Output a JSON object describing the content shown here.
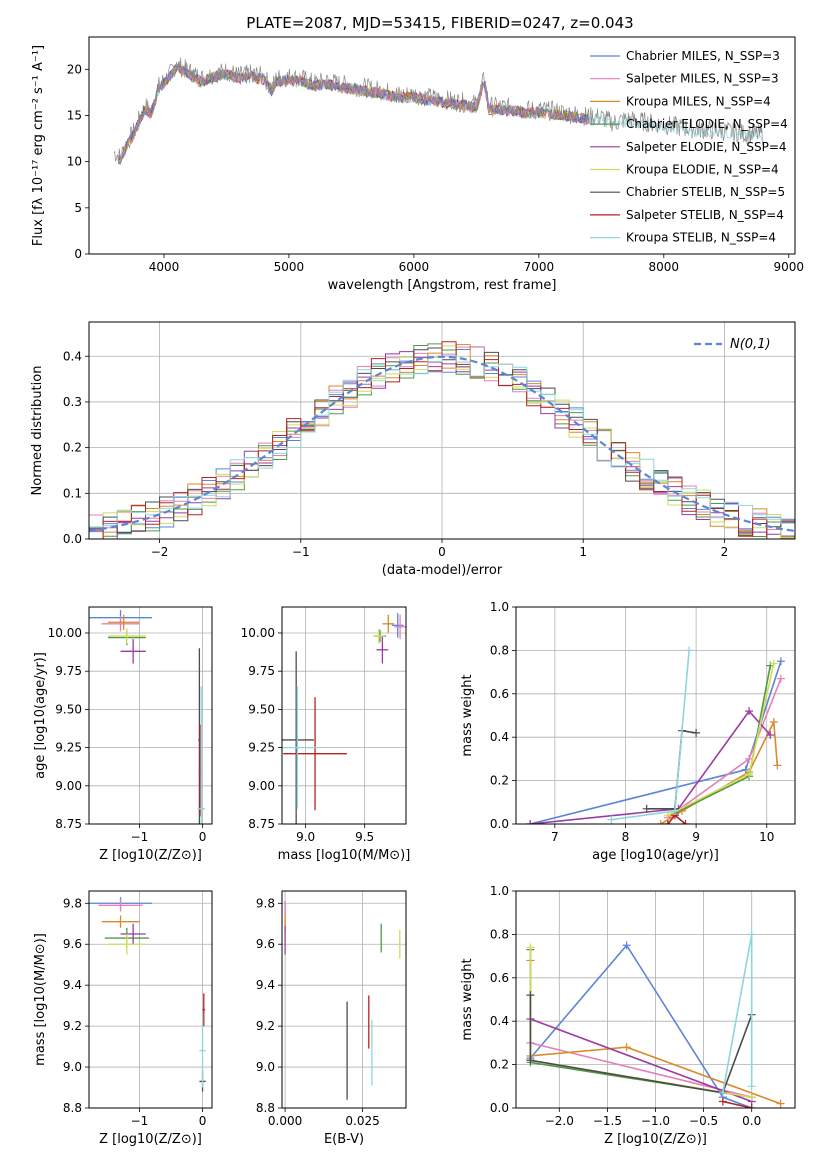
{
  "figure_title": "PLATE=2087, MJD=53415, FIBERID=0247, z=0.043",
  "colors": {
    "Chabrier MILES": "#5b86d8",
    "Salpeter MILES": "#e57fb8",
    "Kroupa MILES": "#d98a2a",
    "Chabrier ELODIE": "#4e9a47",
    "Salpeter ELODIE": "#9b3aa3",
    "Kroupa ELODIE": "#d2dc5a",
    "Chabrier STELIB": "#4d4d4d",
    "Salpeter STELIB": "#b52323",
    "Kroupa STELIB": "#8fd6dc",
    "normal": "#5b86d8",
    "grid": "#b0b0b0"
  },
  "chart_data": [
    {
      "id": "spectrum",
      "type": "line",
      "title": "PLATE=2087, MJD=53415, FIBERID=0247, z=0.043",
      "xlabel": "wavelength [Angstrom, rest frame]",
      "ylabel": "Flux [fλ 10⁻¹⁷ erg cm⁻² s⁻¹ A⁻¹]",
      "xlim": [
        3400,
        9050
      ],
      "ylim": [
        0,
        23.5
      ],
      "grid": false,
      "xticks": [
        4000,
        5000,
        6000,
        7000,
        8000,
        9000
      ],
      "yticks": [
        0,
        5,
        10,
        15,
        20
      ],
      "legend_position": "top-right",
      "observed": {
        "x": [
          3600,
          3650,
          3700,
          3750,
          3800,
          3850,
          3900,
          3950,
          4000,
          4050,
          4100,
          4200,
          4300,
          4400,
          4500,
          4600,
          4700,
          4800,
          4861,
          4900,
          5000,
          5100,
          5200,
          5300,
          5400,
          5500,
          5600,
          5700,
          5800,
          5900,
          6000,
          6100,
          6200,
          6300,
          6400,
          6500,
          6563,
          6600,
          6700,
          6800,
          6900,
          7000,
          7100,
          7200,
          7300,
          7400,
          7500,
          7600,
          7700,
          7800,
          7900,
          8000,
          8100,
          8200,
          8300,
          8400,
          8500,
          8600,
          8700,
          8800
        ],
        "y": [
          11.0,
          10.5,
          12.0,
          13.0,
          14.5,
          16.0,
          15.5,
          18.0,
          18.8,
          19.5,
          20.5,
          19.8,
          19.0,
          19.5,
          19.8,
          19.3,
          19.5,
          19.2,
          18.0,
          19.0,
          19.2,
          19.0,
          18.5,
          18.7,
          18.4,
          18.2,
          18.0,
          17.8,
          17.5,
          17.2,
          17.3,
          17.0,
          16.8,
          16.6,
          16.4,
          16.2,
          19.0,
          16.0,
          15.9,
          15.8,
          15.6,
          15.6,
          15.5,
          15.3,
          15.1,
          14.9,
          14.8,
          14.2,
          14.6,
          14.4,
          14.2,
          14.0,
          13.8,
          13.6,
          13.5,
          13.4,
          13.3,
          13.1,
          13.0,
          12.9
        ]
      },
      "series": [
        {
          "name": "Chabrier MILES, N_SSP=3"
        },
        {
          "name": "Salpeter MILES, N_SSP=3"
        },
        {
          "name": "Kroupa MILES, N_SSP=4"
        },
        {
          "name": "Chabrier ELODIE, N_SSP=4"
        },
        {
          "name": "Salpeter ELODIE, N_SSP=4"
        },
        {
          "name": "Kroupa ELODIE, N_SSP=4"
        },
        {
          "name": "Chabrier STELIB, N_SSP=5"
        },
        {
          "name": "Salpeter STELIB, N_SSP=4"
        },
        {
          "name": "Kroupa STELIB, N_SSP=4"
        }
      ]
    },
    {
      "id": "residuals",
      "type": "histogram",
      "xlabel": "(data-model)/error",
      "ylabel": "Normed distribution",
      "xlim": [
        -2.5,
        2.5
      ],
      "ylim": [
        0,
        0.475
      ],
      "grid": true,
      "xticks": [
        -2,
        -1,
        0,
        1,
        2
      ],
      "yticks": [
        0.0,
        0.1,
        0.2,
        0.3,
        0.4
      ],
      "legend": [
        {
          "label": "N(0,1)",
          "style": "dashed"
        }
      ],
      "legend_position": "top-right"
    },
    {
      "id": "age_vs_Z",
      "type": "errorbar",
      "xlabel": "Z [log10(Z/Z⊙)]",
      "ylabel": "age  [log10(age/yr)]",
      "xlim": [
        -1.8,
        0.15
      ],
      "ylim": [
        8.75,
        10.17
      ],
      "grid": true,
      "xticks": [
        -1,
        0
      ],
      "yticks": [
        8.75,
        9.0,
        9.25,
        9.5,
        9.75,
        10.0
      ],
      "points": [
        {
          "model": "Chabrier MILES",
          "x": -1.3,
          "y": 10.1,
          "xerr": 0.5,
          "yerr": 0.05
        },
        {
          "model": "Salpeter MILES",
          "x": -1.3,
          "y": 10.06,
          "xerr": 0.3,
          "yerr": 0.05
        },
        {
          "model": "Kroupa MILES",
          "x": -1.25,
          "y": 10.07,
          "xerr": 0.25,
          "yerr": 0.05
        },
        {
          "model": "Chabrier ELODIE",
          "x": -1.2,
          "y": 9.97,
          "xerr": 0.3,
          "yerr": 0.05
        },
        {
          "model": "Salpeter ELODIE",
          "x": -1.1,
          "y": 9.88,
          "xerr": 0.2,
          "yerr": 0.08
        },
        {
          "model": "Kroupa ELODIE",
          "x": -1.2,
          "y": 9.98,
          "xerr": 0.3,
          "yerr": 0.05
        },
        {
          "model": "Chabrier STELIB",
          "x": -0.05,
          "y": 9.3,
          "xerr": 0.02,
          "yerr": 0.6
        },
        {
          "model": "Salpeter STELIB",
          "x": -0.04,
          "y": 9.1,
          "xerr": 0.02,
          "yerr": 0.3
        },
        {
          "model": "Kroupa STELIB",
          "x": -0.02,
          "y": 8.85,
          "xerr": 0.06,
          "yerr": 0.8
        }
      ]
    },
    {
      "id": "age_vs_mass",
      "type": "errorbar",
      "xlabel": "mass [log10(M/M⊙)]",
      "ylabel": "",
      "xlim": [
        8.8,
        9.85
      ],
      "ylim": [
        8.75,
        10.17
      ],
      "grid": true,
      "xticks": [
        9.0,
        9.5
      ],
      "yticks": [
        8.75,
        9.0,
        9.25,
        9.5,
        9.75,
        10.0
      ],
      "points": [
        {
          "model": "Chabrier MILES",
          "x": 9.78,
          "y": 10.05,
          "xerr": 0.05,
          "yerr": 0.08
        },
        {
          "model": "Salpeter MILES",
          "x": 9.8,
          "y": 10.04,
          "xerr": 0.05,
          "yerr": 0.08
        },
        {
          "model": "Kroupa MILES",
          "x": 9.7,
          "y": 10.06,
          "xerr": 0.05,
          "yerr": 0.06
        },
        {
          "model": "Chabrier ELODIE",
          "x": 9.63,
          "y": 9.98,
          "xerr": 0.05,
          "yerr": 0.04
        },
        {
          "model": "Salpeter ELODIE",
          "x": 9.65,
          "y": 9.89,
          "xerr": 0.05,
          "yerr": 0.09
        },
        {
          "model": "Kroupa ELODIE",
          "x": 9.62,
          "y": 9.98,
          "xerr": 0.05,
          "yerr": 0.05
        },
        {
          "model": "Chabrier STELIB",
          "x": 8.92,
          "y": 9.3,
          "xerr": 0.15,
          "yerr": 0.58
        },
        {
          "model": "Salpeter STELIB",
          "x": 9.08,
          "y": 9.21,
          "xerr": 0.27,
          "yerr": 0.37
        },
        {
          "model": "Kroupa STELIB",
          "x": 8.93,
          "y": 9.25,
          "xerr": 0.17,
          "yerr": 0.4
        }
      ]
    },
    {
      "id": "weight_vs_age",
      "type": "line",
      "xlabel": "age  [log10(age/yr)]",
      "ylabel": "mass weight",
      "xlim": [
        6.45,
        10.4
      ],
      "ylim": [
        0,
        1.0
      ],
      "grid": true,
      "xticks": [
        7,
        8,
        9,
        10
      ],
      "yticks": [
        0.0,
        0.2,
        0.4,
        0.6,
        0.8,
        1.0
      ],
      "series": [
        {
          "model": "Chabrier MILES",
          "x": [
            6.65,
            9.7,
            10.2
          ],
          "y": [
            0.0,
            0.25,
            0.75
          ]
        },
        {
          "model": "Salpeter MILES",
          "x": [
            8.6,
            9.75,
            10.2
          ],
          "y": [
            0.03,
            0.3,
            0.67
          ]
        },
        {
          "model": "Kroupa MILES",
          "x": [
            8.5,
            8.8,
            9.75,
            10.1,
            10.15
          ],
          "y": [
            0.0,
            0.06,
            0.24,
            0.47,
            0.27
          ]
        },
        {
          "model": "Chabrier ELODIE",
          "x": [
            8.7,
            9.75,
            10.05
          ],
          "y": [
            0.05,
            0.22,
            0.73
          ]
        },
        {
          "model": "Salpeter ELODIE",
          "x": [
            6.65,
            8.75,
            9.75,
            10.05
          ],
          "y": [
            0.0,
            0.07,
            0.52,
            0.41
          ]
        },
        {
          "model": "Kroupa ELODIE",
          "x": [
            8.6,
            9.75,
            10.1
          ],
          "y": [
            0.04,
            0.23,
            0.74
          ]
        },
        {
          "model": "Chabrier STELIB",
          "x": [
            8.3,
            8.7,
            8.8,
            9.0
          ],
          "y": [
            0.07,
            0.07,
            0.43,
            0.42
          ]
        },
        {
          "model": "Salpeter STELIB",
          "x": [
            8.6,
            8.7,
            8.85
          ],
          "y": [
            0.0,
            0.04,
            0.0
          ]
        },
        {
          "model": "Kroupa STELIB",
          "x": [
            7.8,
            8.7,
            8.9
          ],
          "y": [
            0.02,
            0.06,
            0.8
          ]
        }
      ]
    },
    {
      "id": "mass_vs_Z",
      "type": "errorbar",
      "xlabel": "Z [log10(Z/Z⊙)]",
      "ylabel": "mass [log10(M/M⊙)]",
      "xlim": [
        -1.8,
        0.15
      ],
      "ylim": [
        8.8,
        9.86
      ],
      "grid": true,
      "xticks": [
        -1,
        0
      ],
      "yticks": [
        8.8,
        9.0,
        9.2,
        9.4,
        9.6,
        9.8
      ],
      "points": [
        {
          "model": "Chabrier MILES",
          "x": -1.3,
          "y": 9.8,
          "xerr": 0.5,
          "yerr": 0.03
        },
        {
          "model": "Salpeter MILES",
          "x": -1.3,
          "y": 9.79,
          "xerr": 0.35,
          "yerr": 0.03
        },
        {
          "model": "Kroupa MILES",
          "x": -1.3,
          "y": 9.71,
          "xerr": 0.3,
          "yerr": 0.03
        },
        {
          "model": "Chabrier ELODIE",
          "x": -1.2,
          "y": 9.63,
          "xerr": 0.35,
          "yerr": 0.05
        },
        {
          "model": "Salpeter ELODIE",
          "x": -1.1,
          "y": 9.65,
          "xerr": 0.2,
          "yerr": 0.05
        },
        {
          "model": "Kroupa ELODIE",
          "x": -1.2,
          "y": 9.6,
          "xerr": 0.3,
          "yerr": 0.05
        },
        {
          "model": "Chabrier STELIB",
          "x": 0.0,
          "y": 8.93,
          "xerr": 0.05,
          "yerr": 0.05
        },
        {
          "model": "Salpeter STELIB",
          "x": 0.02,
          "y": 9.28,
          "xerr": 0.02,
          "yerr": 0.08
        },
        {
          "model": "Kroupa STELIB",
          "x": 0.0,
          "y": 9.08,
          "xerr": 0.05,
          "yerr": 0.18
        }
      ]
    },
    {
      "id": "mass_vs_ebv",
      "type": "errorbar",
      "xlabel": "E(B-V)",
      "ylabel": "",
      "xlim": [
        -0.001,
        0.039
      ],
      "ylim": [
        8.8,
        9.86
      ],
      "grid": true,
      "xticks": [
        0.0,
        0.025
      ],
      "yticks": [
        8.8,
        9.0,
        9.2,
        9.4,
        9.6,
        9.8
      ],
      "points": [
        {
          "model": "Chabrier MILES",
          "x": 0.0,
          "y": 9.78,
          "yerr": 0.03
        },
        {
          "model": "Salpeter MILES",
          "x": 0.0,
          "y": 9.75,
          "yerr": 0.06
        },
        {
          "model": "Kroupa MILES",
          "x": 0.0,
          "y": 9.7,
          "yerr": 0.05
        },
        {
          "model": "Chabrier ELODIE",
          "x": 0.031,
          "y": 9.63,
          "yerr": 0.07
        },
        {
          "model": "Salpeter ELODIE",
          "x": 0.0,
          "y": 9.62,
          "yerr": 0.07
        },
        {
          "model": "Kroupa ELODIE",
          "x": 0.037,
          "y": 9.6,
          "yerr": 0.07
        },
        {
          "model": "Chabrier STELIB",
          "x": 0.02,
          "y": 9.08,
          "yerr": 0.24
        },
        {
          "model": "Salpeter STELIB",
          "x": 0.027,
          "y": 9.22,
          "yerr": 0.13
        },
        {
          "model": "Kroupa STELIB",
          "x": 0.028,
          "y": 9.07,
          "yerr": 0.16
        }
      ]
    },
    {
      "id": "weight_vs_Z",
      "type": "line",
      "xlabel": "Z [log10(Z/Z⊙)]",
      "ylabel": "mass weight",
      "xlim": [
        -2.45,
        0.45
      ],
      "ylim": [
        0,
        1.0
      ],
      "grid": true,
      "xticks": [
        -2.0,
        -1.5,
        -1.0,
        -0.5,
        0.0
      ],
      "yticks": [
        0.0,
        0.2,
        0.4,
        0.6,
        0.8,
        1.0
      ],
      "series": [
        {
          "model": "Chabrier MILES",
          "x": [
            -2.3,
            -1.3,
            -0.3,
            0.0
          ],
          "y": [
            0.23,
            0.75,
            0.05,
            0.0
          ]
        },
        {
          "model": "Salpeter MILES",
          "x": [
            -2.3,
            0.0
          ],
          "y": [
            0.3,
            0.05
          ]
        },
        {
          "model": "Kroupa MILES",
          "x": [
            -2.3,
            -2.3,
            -1.3,
            0.3
          ],
          "y": [
            0.68,
            0.24,
            0.28,
            0.02
          ]
        },
        {
          "model": "Chabrier ELODIE",
          "x": [
            -2.3,
            -2.3,
            0.0
          ],
          "y": [
            0.73,
            0.21,
            0.05
          ]
        },
        {
          "model": "Salpeter ELODIE",
          "x": [
            -2.3,
            0.0
          ],
          "y": [
            0.41,
            0.03
          ]
        },
        {
          "model": "Kroupa ELODIE",
          "x": [
            -2.3,
            -2.3,
            0.0
          ],
          "y": [
            0.74,
            0.22,
            0.05
          ]
        },
        {
          "model": "Chabrier STELIB",
          "x": [
            -2.3,
            -2.3,
            -0.3,
            0.0
          ],
          "y": [
            0.52,
            0.22,
            0.07,
            0.43
          ]
        },
        {
          "model": "Salpeter STELIB",
          "x": [
            -0.3,
            0.0
          ],
          "y": [
            0.03,
            0.0
          ]
        },
        {
          "model": "Kroupa STELIB",
          "x": [
            -0.3,
            0.0,
            0.0
          ],
          "y": [
            0.07,
            0.8,
            0.1
          ]
        }
      ]
    }
  ]
}
